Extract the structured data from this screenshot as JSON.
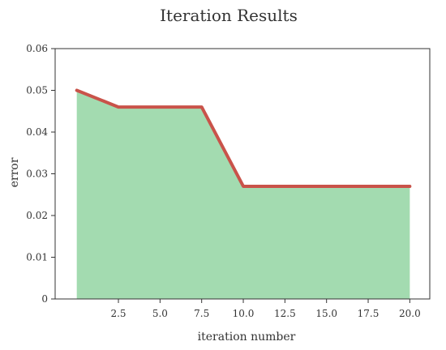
{
  "chart_data": {
    "type": "area",
    "title": "Iteration Results",
    "xlabel": "iteration number",
    "ylabel": "error",
    "x": [
      0,
      2.5,
      5.0,
      7.5,
      10.0,
      12.5,
      15.0,
      17.5,
      20.0
    ],
    "series": [
      {
        "values": [
          0.05,
          0.046,
          0.046,
          0.046,
          0.027,
          0.027,
          0.027,
          0.027,
          0.027
        ]
      }
    ],
    "xlim": [
      -1.3,
      21.2
    ],
    "ylim": [
      0,
      0.06
    ],
    "x_ticks": [
      2.5,
      5.0,
      7.5,
      10.0,
      12.5,
      15.0,
      17.5,
      20.0
    ],
    "x_tick_labels": [
      "2.5",
      "5.0",
      "7.5",
      "10.0",
      "12.5",
      "15.0",
      "17.5",
      "20.0"
    ],
    "y_ticks": [
      0,
      0.01,
      0.02,
      0.03,
      0.04,
      0.05,
      0.06
    ],
    "y_tick_labels": [
      "0",
      "0.01",
      "0.02",
      "0.03",
      "0.04",
      "0.05",
      "0.06"
    ],
    "grid": false,
    "colors": {
      "fill": "#a3dbb0",
      "line": "#c9534a",
      "axis": "#333333"
    }
  }
}
